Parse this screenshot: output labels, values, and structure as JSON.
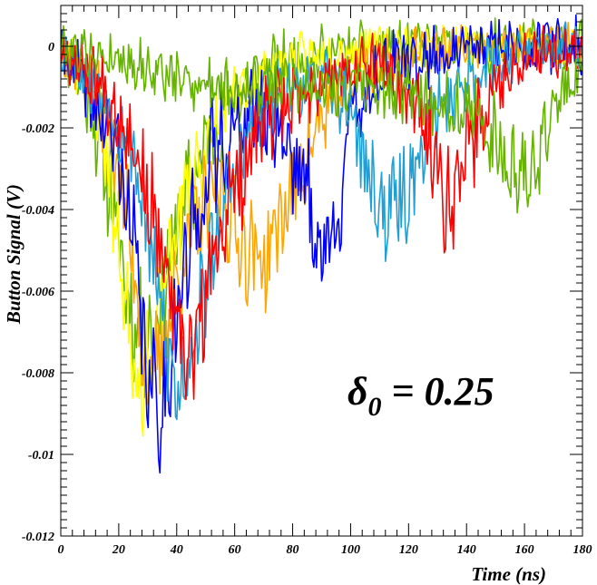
{
  "chart_data": {
    "type": "line",
    "title": "",
    "xlabel": "Time (ns)",
    "ylabel": "Button Signal (V)",
    "xlim": [
      0,
      180
    ],
    "ylim": [
      -0.012,
      0.001
    ],
    "x_ticks": [
      0,
      20,
      40,
      60,
      80,
      100,
      120,
      140,
      160,
      180
    ],
    "x_tick_labels": [
      "0",
      "20",
      "40",
      "60",
      "80",
      "100",
      "120",
      "140",
      "160",
      "180"
    ],
    "y_ticks": [
      0,
      -0.002,
      -0.004,
      -0.006,
      -0.008,
      -0.01,
      -0.012
    ],
    "y_tick_labels": [
      "0",
      "-0.002",
      "-0.004",
      "-0.006",
      "-0.008",
      "-0.01",
      "-0.012"
    ],
    "grid": false,
    "annotation": {
      "prefix": "δ",
      "subscript": "0",
      "suffix": " = 0.25"
    },
    "series": [
      {
        "color": "#66b300",
        "noise": 0.0012,
        "seed": 11,
        "x": [
          0,
          5,
          10,
          15,
          20,
          25,
          30,
          35,
          40,
          50,
          60,
          70,
          80,
          100,
          120,
          140,
          160,
          180
        ],
        "y": [
          0,
          -0.0006,
          -0.0014,
          -0.0028,
          -0.0048,
          -0.0068,
          -0.0072,
          -0.0062,
          -0.0045,
          -0.0024,
          -0.0012,
          -0.0006,
          -0.0003,
          -0.0001,
          0,
          0,
          0,
          0
        ]
      },
      {
        "color": "#ffff00",
        "noise": 0.0011,
        "seed": 23,
        "x": [
          0,
          10,
          15,
          20,
          25,
          28,
          32,
          38,
          45,
          55,
          65,
          80,
          100,
          120,
          140,
          160,
          180
        ],
        "y": [
          0,
          -0.0009,
          -0.0022,
          -0.005,
          -0.0075,
          -0.0082,
          -0.0074,
          -0.005,
          -0.0032,
          -0.0018,
          -0.001,
          -0.0004,
          -0.0001,
          0,
          0,
          0,
          0
        ]
      },
      {
        "color": "#ffa500",
        "noise": 0.0011,
        "seed": 37,
        "x": [
          0,
          10,
          18,
          25,
          30,
          36,
          45,
          55,
          62,
          70,
          80,
          90,
          100,
          120,
          140,
          160,
          180
        ],
        "y": [
          0,
          -0.0008,
          -0.0022,
          -0.0052,
          -0.0085,
          -0.007,
          -0.0045,
          -0.0035,
          -0.0048,
          -0.0053,
          -0.0035,
          -0.0018,
          -0.0008,
          -0.0002,
          0,
          0,
          0
        ]
      },
      {
        "color": "#0000ff",
        "noise": 0.0013,
        "seed": 41,
        "x": [
          0,
          10,
          20,
          25,
          30,
          35,
          40,
          48,
          55,
          65,
          75,
          85,
          90,
          95,
          100,
          110,
          130,
          150,
          180
        ],
        "y": [
          0,
          -0.0012,
          -0.0026,
          -0.0048,
          -0.0083,
          -0.0089,
          -0.0065,
          -0.0038,
          -0.0024,
          -0.0016,
          -0.0018,
          -0.0035,
          -0.0053,
          -0.0042,
          -0.0018,
          -0.0006,
          -0.0002,
          0,
          0
        ]
      },
      {
        "color": "#1e9fd6",
        "noise": 0.0011,
        "seed": 53,
        "x": [
          0,
          15,
          25,
          32,
          40,
          46,
          55,
          65,
          75,
          90,
          100,
          105,
          112,
          120,
          130,
          145,
          160,
          180
        ],
        "y": [
          0,
          -0.0012,
          -0.0025,
          -0.0055,
          -0.0086,
          -0.0071,
          -0.0042,
          -0.0022,
          -0.0012,
          -0.0008,
          -0.0014,
          -0.003,
          -0.0042,
          -0.0035,
          -0.0015,
          -0.0005,
          -0.0001,
          0
        ]
      },
      {
        "color": "#ff0000",
        "noise": 0.0012,
        "seed": 67,
        "x": [
          0,
          15,
          25,
          35,
          42,
          47,
          55,
          65,
          75,
          90,
          110,
          125,
          133,
          140,
          150,
          160,
          180
        ],
        "y": [
          0,
          -0.001,
          -0.0022,
          -0.0052,
          -0.0078,
          -0.0072,
          -0.0045,
          -0.0025,
          -0.0015,
          -0.0008,
          -0.0005,
          -0.0018,
          -0.0037,
          -0.0028,
          -0.0009,
          -0.0002,
          0
        ]
      },
      {
        "color": "#66b300",
        "noise": 0.001,
        "seed": 79,
        "x": [
          0,
          20,
          40,
          60,
          80,
          100,
          120,
          140,
          150,
          158,
          165,
          172,
          180
        ],
        "y": [
          0,
          -0.0003,
          -0.0008,
          -0.001,
          -0.0009,
          -0.001,
          -0.0012,
          -0.0015,
          -0.0022,
          -0.0034,
          -0.0026,
          -0.0012,
          -0.0005
        ]
      }
    ]
  }
}
